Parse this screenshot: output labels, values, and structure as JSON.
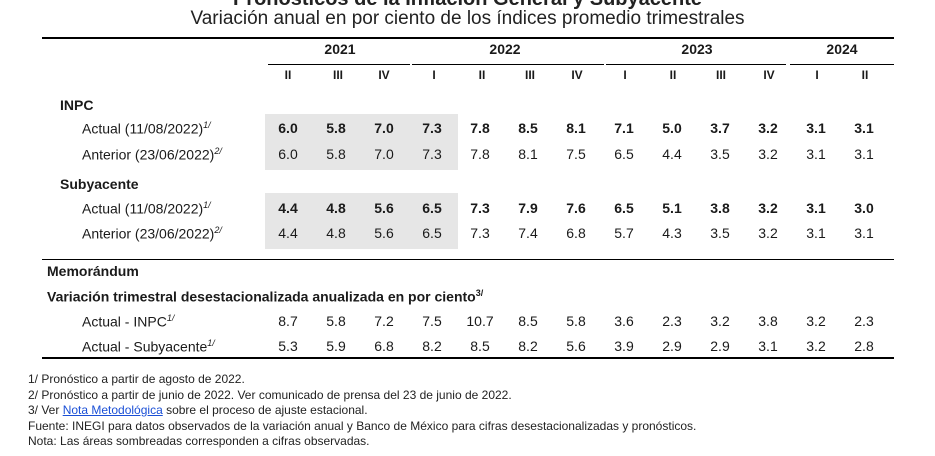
{
  "title": "Pronósticos de la Inflación General y Subyacente",
  "subtitle": "Variación anual en por ciento de los índices promedio trimestrales",
  "years": [
    "2021",
    "2022",
    "2023",
    "2024"
  ],
  "quarters": [
    "II",
    "III",
    "IV",
    "I",
    "II",
    "III",
    "IV",
    "I",
    "II",
    "III",
    "IV",
    "I",
    "II"
  ],
  "sections": {
    "inpc": "INPC",
    "subyacente": "Subyacente",
    "memo": "Memorándum",
    "memo_sub": "Variación trimestral desestacionalizada anualizada en por ciento",
    "memo_sub_sup": "3/"
  },
  "rows": {
    "inpc_actual": {
      "label": "Actual (11/08/2022)",
      "sup": "1/",
      "values": [
        "6.0",
        "5.8",
        "7.0",
        "7.3",
        "7.8",
        "8.5",
        "8.1",
        "7.1",
        "5.0",
        "3.7",
        "3.2",
        "3.1",
        "3.1"
      ]
    },
    "inpc_anterior": {
      "label": "Anterior (23/06/2022)",
      "sup": "2/",
      "values": [
        "6.0",
        "5.8",
        "7.0",
        "7.3",
        "7.8",
        "8.1",
        "7.5",
        "6.5",
        "4.4",
        "3.5",
        "3.2",
        "3.1",
        "3.1"
      ]
    },
    "sub_actual": {
      "label": "Actual (11/08/2022)",
      "sup": "1/",
      "values": [
        "4.4",
        "4.8",
        "5.6",
        "6.5",
        "7.3",
        "7.9",
        "7.6",
        "6.5",
        "5.1",
        "3.8",
        "3.2",
        "3.1",
        "3.0"
      ]
    },
    "sub_anterior": {
      "label": "Anterior (23/06/2022)",
      "sup": "2/",
      "values": [
        "4.4",
        "4.8",
        "5.6",
        "6.5",
        "7.3",
        "7.4",
        "6.8",
        "5.7",
        "4.3",
        "3.5",
        "3.2",
        "3.1",
        "3.1"
      ]
    },
    "memo_inpc": {
      "label": "Actual - INPC",
      "sup": "1/",
      "values": [
        "8.7",
        "5.8",
        "7.2",
        "7.5",
        "10.7",
        "8.5",
        "5.8",
        "3.6",
        "2.3",
        "3.2",
        "3.8",
        "3.2",
        "2.3"
      ]
    },
    "memo_sub": {
      "label": "Actual - Subyacente",
      "sup": "1/",
      "values": [
        "5.3",
        "5.9",
        "6.8",
        "8.2",
        "8.5",
        "8.2",
        "5.6",
        "3.9",
        "2.9",
        "2.9",
        "3.1",
        "3.2",
        "2.8"
      ]
    }
  },
  "notes": {
    "n1": "1/ Pronóstico a partir de agosto de 2022.",
    "n2": "2/ Pronóstico a partir de junio de 2022. Ver comunicado de prensa del 23 de junio de 2022.",
    "n3_pre": "3/ Ver ",
    "n3_link": "Nota Metodológica",
    "n3_post": " sobre el proceso de ajuste estacional.",
    "fuente": "Fuente: INEGI para datos observados de la variación anual y Banco de México para cifras desestacionalizadas y pronósticos.",
    "nota": "Nota: Las áreas sombreadas corresponden a cifras observadas."
  }
}
